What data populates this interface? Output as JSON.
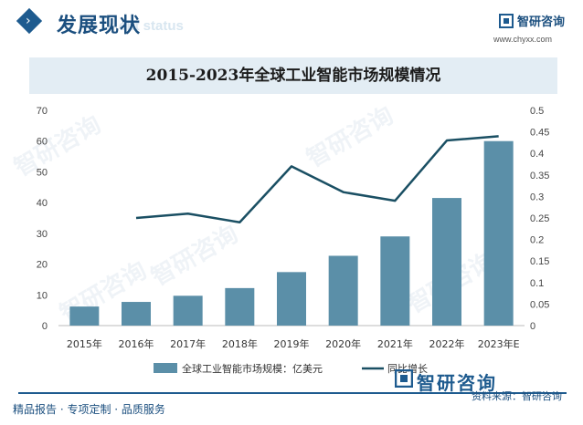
{
  "header": {
    "section_title": "发展现状",
    "section_title_en": "ent status",
    "brand_name": "智研咨询",
    "brand_url": "www.chyxx.com"
  },
  "chart_data": {
    "type": "bar",
    "title": "2015-2023年全球工业智能市场规模情况",
    "categories": [
      "2015年",
      "2016年",
      "2017年",
      "2018年",
      "2019年",
      "2020年",
      "2021年",
      "2022年",
      "2023年E"
    ],
    "series": [
      {
        "name": "全球工业智能市场规模：亿美元",
        "type": "bar",
        "axis": "left",
        "values": [
          6.2,
          7.7,
          9.7,
          12.2,
          17.4,
          22.7,
          29.0,
          41.5,
          60.0
        ]
      },
      {
        "name": "同比增长",
        "type": "line",
        "axis": "right",
        "values": [
          null,
          0.25,
          0.26,
          0.24,
          0.37,
          0.31,
          0.29,
          0.43,
          0.44
        ]
      }
    ],
    "ylim_left": [
      0,
      70
    ],
    "yticks_left": [
      "0",
      "10",
      "20",
      "30",
      "40",
      "50",
      "60",
      "70"
    ],
    "ylim_right": [
      0,
      0.5
    ],
    "yticks_right": [
      "0",
      "0.05",
      "0.1",
      "0.15",
      "0.2",
      "0.25",
      "0.3",
      "0.35",
      "0.4",
      "0.45",
      "0.5"
    ],
    "grid": false,
    "legend_position": "bottom-center",
    "colors": {
      "bar": "#5b8fa8",
      "line": "#1a4f63"
    }
  },
  "footer": {
    "left_text": "精品报告 · 专项定制 · 品质服务",
    "source_text": "资料来源：智研咨询",
    "logo_text": "智研咨询"
  },
  "watermark_text": "智研咨询"
}
